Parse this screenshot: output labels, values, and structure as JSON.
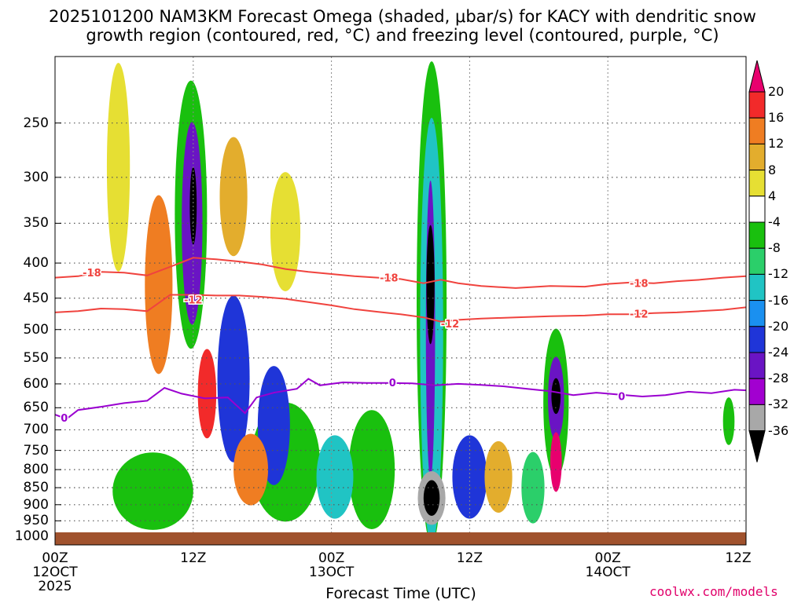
{
  "title_line1": "2025101200 NAM3KM Forecast Omega (shaded, μbar/s) for KACY with dendritic snow",
  "title_line2": "growth region (contoured, red, °C) and freezing level (contoured, purple, °C)",
  "chart_data": {
    "type": "heatmap",
    "xlabel": "Forecast Time (UTC)",
    "x_ticks": [
      {
        "hours": 0,
        "line1": "00Z",
        "line2": "12OCT",
        "line3": "2025"
      },
      {
        "hours": 12,
        "line1": "12Z",
        "line2": "",
        "line3": ""
      },
      {
        "hours": 24,
        "line1": "00Z",
        "line2": "13OCT",
        "line3": ""
      },
      {
        "hours": 36,
        "line1": "12Z",
        "line2": "",
        "line3": ""
      },
      {
        "hours": 48,
        "line1": "00Z",
        "line2": "14OCT",
        "line3": ""
      },
      {
        "hours": 60,
        "line1": "12Z",
        "line2": "",
        "line3": ""
      }
    ],
    "xlim": [
      0,
      60
    ],
    "y_ticks": [
      250,
      300,
      350,
      400,
      450,
      500,
      550,
      600,
      650,
      700,
      750,
      800,
      850,
      900,
      950,
      1000
    ],
    "ylim": [
      200,
      1030
    ],
    "y_scale": "log-pressure, inverted",
    "grid": true,
    "colorbar": {
      "labels": [
        "20",
        "16",
        "12",
        "8",
        "4",
        "-4",
        "-8",
        "-12",
        "-16",
        "-20",
        "-24",
        "-28",
        "-32",
        "-36"
      ],
      "colors": [
        "#e8006e",
        "#f22a2a",
        "#ef7d22",
        "#e3ad2d",
        "#e6df33",
        "#ffffff",
        "#19c00e",
        "#2bcf6a",
        "#20c4c4",
        "#1a90f0",
        "#1f35d8",
        "#6a14c4",
        "#a200d0",
        "#a8a8a8",
        "#000000"
      ]
    },
    "dgz_contours": [
      {
        "label": "-18",
        "points": [
          [
            0,
            420
          ],
          [
            2,
            418
          ],
          [
            4,
            412
          ],
          [
            6,
            413
          ],
          [
            8,
            417
          ],
          [
            10,
            405
          ],
          [
            12,
            393
          ],
          [
            14,
            395
          ],
          [
            16,
            398
          ],
          [
            18,
            402
          ],
          [
            20,
            408
          ],
          [
            22,
            412
          ],
          [
            24,
            415
          ],
          [
            26,
            418
          ],
          [
            28,
            420
          ],
          [
            30,
            422
          ],
          [
            32,
            428
          ],
          [
            33.5,
            423
          ],
          [
            35,
            428
          ],
          [
            37,
            432
          ],
          [
            40,
            435
          ],
          [
            43,
            432
          ],
          [
            46,
            433
          ],
          [
            48,
            429
          ],
          [
            50,
            427
          ],
          [
            52,
            428
          ],
          [
            54,
            425
          ],
          [
            56,
            423
          ],
          [
            58,
            420
          ],
          [
            60,
            418
          ]
        ]
      },
      {
        "label": "-12",
        "points": [
          [
            0,
            472
          ],
          [
            2,
            470
          ],
          [
            4,
            466
          ],
          [
            6,
            467
          ],
          [
            8,
            470
          ],
          [
            10,
            445
          ],
          [
            12,
            445
          ],
          [
            14,
            446
          ],
          [
            16,
            446
          ],
          [
            18,
            448
          ],
          [
            20,
            451
          ],
          [
            22,
            456
          ],
          [
            24,
            461
          ],
          [
            26,
            467
          ],
          [
            28,
            471
          ],
          [
            30,
            475
          ],
          [
            32,
            480
          ],
          [
            33.5,
            487
          ],
          [
            35,
            484
          ],
          [
            37,
            482
          ],
          [
            40,
            480
          ],
          [
            43,
            478
          ],
          [
            46,
            477
          ],
          [
            48,
            475
          ],
          [
            50,
            475
          ],
          [
            52,
            473
          ],
          [
            54,
            472
          ],
          [
            56,
            470
          ],
          [
            58,
            468
          ],
          [
            60,
            464
          ]
        ]
      }
    ],
    "freezing_contour": {
      "label": "0",
      "points": [
        [
          0,
          665
        ],
        [
          1,
          675
        ],
        [
          2,
          655
        ],
        [
          4,
          648
        ],
        [
          6,
          640
        ],
        [
          8,
          635
        ],
        [
          9.5,
          608
        ],
        [
          11,
          620
        ],
        [
          13,
          630
        ],
        [
          15,
          628
        ],
        [
          16.5,
          662
        ],
        [
          17.5,
          628
        ],
        [
          19,
          618
        ],
        [
          21,
          610
        ],
        [
          22,
          590
        ],
        [
          23,
          603
        ],
        [
          25,
          597
        ],
        [
          27,
          598
        ],
        [
          29,
          598
        ],
        [
          31,
          599
        ],
        [
          33,
          603
        ],
        [
          35,
          600
        ],
        [
          37,
          602
        ],
        [
          39,
          605
        ],
        [
          41,
          610
        ],
        [
          43,
          615
        ],
        [
          45,
          623
        ],
        [
          47,
          618
        ],
        [
          49,
          622
        ],
        [
          51,
          626
        ],
        [
          53,
          623
        ],
        [
          55,
          616
        ],
        [
          57,
          619
        ],
        [
          59,
          612
        ],
        [
          60,
          613
        ]
      ]
    },
    "contour_labels": [
      {
        "text": "-18",
        "x": 3.2,
        "y": 413
      },
      {
        "text": "-12",
        "x": 12.0,
        "y": 452
      },
      {
        "text": "-18",
        "x": 29.0,
        "y": 420
      },
      {
        "text": "-12",
        "x": 34.3,
        "y": 490
      },
      {
        "text": "-18",
        "x": 50.7,
        "y": 428
      },
      {
        "text": "-12",
        "x": 50.7,
        "y": 474
      },
      {
        "text": "0",
        "x": 0.8,
        "y": 672
      },
      {
        "text": "0",
        "x": 29.3,
        "y": 597
      },
      {
        "text": "0",
        "x": 49.2,
        "y": 625
      }
    ],
    "omega_features": [
      {
        "x": 12.0,
        "y": 330,
        "rx": 0.3,
        "ry": 0.13,
        "level": -36
      },
      {
        "x": 11.9,
        "y": 350,
        "rx": 0.9,
        "ry": 0.34,
        "level": -28
      },
      {
        "x": 11.8,
        "y": 340,
        "rx": 1.4,
        "ry": 0.45,
        "level": -8
      },
      {
        "x": 32.6,
        "y": 430,
        "rx": 0.35,
        "ry": 0.2,
        "level": -36
      },
      {
        "x": 32.6,
        "y": 500,
        "rx": 0.4,
        "ry": 0.5,
        "level": -28
      },
      {
        "x": 32.7,
        "y": 520,
        "rx": 1.0,
        "ry": 0.75,
        "level": -16
      },
      {
        "x": 32.7,
        "y": 500,
        "rx": 1.3,
        "ry": 0.9,
        "level": -8
      },
      {
        "x": 32.7,
        "y": 880,
        "rx": 0.7,
        "ry": 0.06,
        "level": -36
      },
      {
        "x": 32.7,
        "y": 880,
        "rx": 1.2,
        "ry": 0.09,
        "level": -32
      },
      {
        "x": 43.5,
        "y": 625,
        "rx": 0.4,
        "ry": 0.06,
        "level": -36
      },
      {
        "x": 43.5,
        "y": 630,
        "rx": 0.7,
        "ry": 0.14,
        "level": -28
      },
      {
        "x": 43.5,
        "y": 640,
        "rx": 1.1,
        "ry": 0.25,
        "level": -8
      },
      {
        "x": 15.5,
        "y": 590,
        "rx": 1.4,
        "ry": 0.28,
        "level": -24
      },
      {
        "x": 19.0,
        "y": 690,
        "rx": 1.4,
        "ry": 0.2,
        "level": -24
      },
      {
        "x": 24.3,
        "y": 820,
        "rx": 1.6,
        "ry": 0.14,
        "level": -16
      },
      {
        "x": 36.0,
        "y": 820,
        "rx": 1.5,
        "ry": 0.14,
        "level": -24
      },
      {
        "x": 41.5,
        "y": 850,
        "rx": 1.0,
        "ry": 0.12,
        "level": -12
      },
      {
        "x": 27.5,
        "y": 800,
        "rx": 2.0,
        "ry": 0.2,
        "level": -8
      },
      {
        "x": 8.5,
        "y": 860,
        "rx": 3.5,
        "ry": 0.13,
        "level": -8
      },
      {
        "x": 20.0,
        "y": 780,
        "rx": 3.0,
        "ry": 0.2,
        "level": -8
      },
      {
        "x": 9.0,
        "y": 430,
        "rx": 1.2,
        "ry": 0.3,
        "level": 12
      },
      {
        "x": 13.2,
        "y": 620,
        "rx": 0.8,
        "ry": 0.15,
        "level": 16
      },
      {
        "x": 43.5,
        "y": 780,
        "rx": 0.5,
        "ry": 0.1,
        "level": 20
      },
      {
        "x": 5.5,
        "y": 290,
        "rx": 1.0,
        "ry": 0.35,
        "level": 4
      },
      {
        "x": 15.5,
        "y": 320,
        "rx": 1.2,
        "ry": 0.2,
        "level": 8
      },
      {
        "x": 20.0,
        "y": 360,
        "rx": 1.3,
        "ry": 0.2,
        "level": 4
      },
      {
        "x": 17.0,
        "y": 800,
        "rx": 1.5,
        "ry": 0.12,
        "level": 12
      },
      {
        "x": 38.5,
        "y": 820,
        "rx": 1.2,
        "ry": 0.12,
        "level": 8
      },
      {
        "x": 58.5,
        "y": 680,
        "rx": 0.5,
        "ry": 0.08,
        "level": -8
      }
    ]
  },
  "credit": "coolwx.com/models"
}
